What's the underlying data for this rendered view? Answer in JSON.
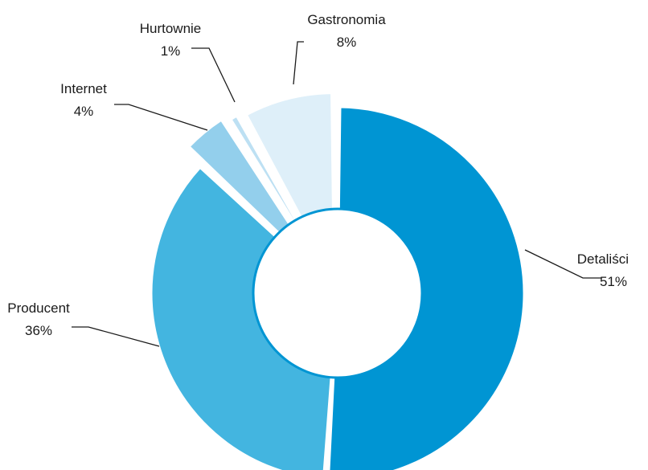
{
  "chart_data": {
    "type": "pie",
    "variant": "donut",
    "slices": [
      {
        "name": "Detaliści",
        "value": 51,
        "label": "51%",
        "color": "#0095d3"
      },
      {
        "name": "Producent",
        "value": 36,
        "label": "36%",
        "color": "#43b5e0"
      },
      {
        "name": "Internet",
        "value": 4,
        "label": "4%",
        "color": "#93cfec"
      },
      {
        "name": "Hurtownie",
        "value": 1,
        "label": "1%",
        "color": "#bde0f3"
      },
      {
        "name": "Gastronomia",
        "value": 8,
        "label": "8%",
        "color": "#deeff9"
      }
    ],
    "legend": "none",
    "labels": "outside with leader lines"
  }
}
